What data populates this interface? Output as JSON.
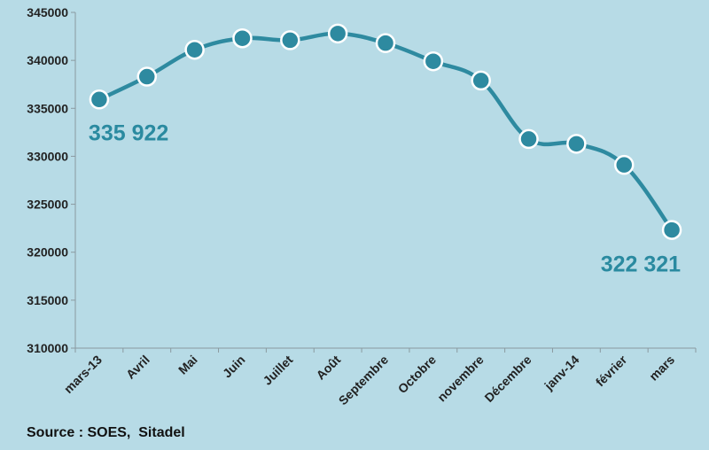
{
  "chart_data": {
    "type": "line",
    "categories": [
      "mars-13",
      "Avril",
      "Mai",
      "Juin",
      "Juillet",
      "Août",
      "Septembre",
      "Octobre",
      "novembre",
      "Décembre",
      "janv-14",
      "février",
      "mars"
    ],
    "series": [
      {
        "values": [
          335922,
          338300,
          341100,
          342300,
          342100,
          342800,
          341800,
          339900,
          337900,
          331800,
          331300,
          329100,
          322321
        ]
      }
    ],
    "ylim": [
      310000,
      345000
    ],
    "y_ticks": [
      "310000",
      "315000",
      "320000",
      "325000",
      "330000",
      "335000",
      "340000",
      "345000"
    ],
    "annotations": [
      {
        "category": "mars-13",
        "text": "335 922"
      },
      {
        "category": "mars",
        "text": "322 321"
      }
    ],
    "grid": false,
    "title": "",
    "xlabel": "",
    "ylabel": ""
  },
  "colors": {
    "background": "#b7dbe6",
    "line": "#2e8aa0",
    "marker": "#2e8aa0",
    "label": "#2a8aa0"
  },
  "source": "Source : SOES,  Sitadel"
}
